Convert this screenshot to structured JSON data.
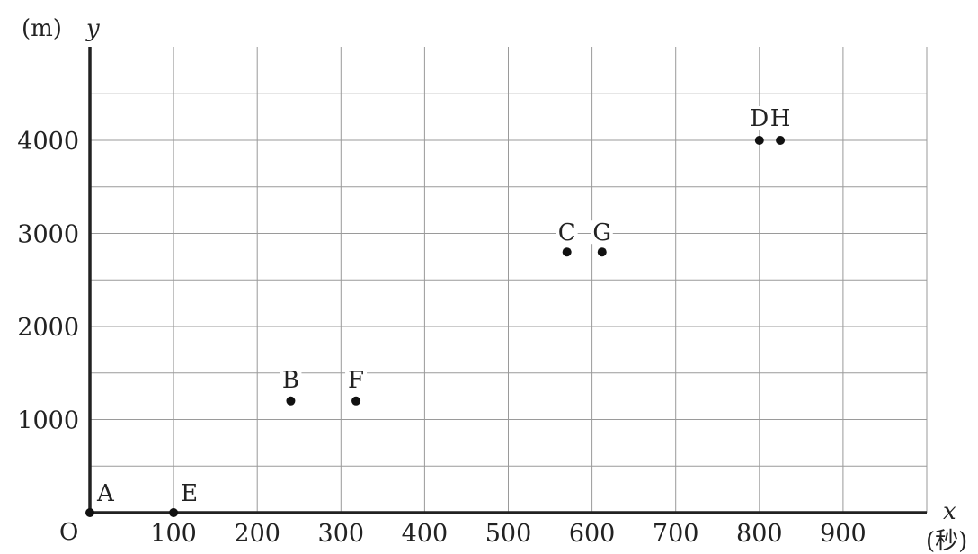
{
  "chart_data": {
    "type": "scatter",
    "xlabel": "x",
    "xunit": "(秒)",
    "ylabel": "y",
    "yunit": "(m)",
    "origin_label": "O",
    "xlim": [
      0,
      1000
    ],
    "ylim": [
      0,
      4000
    ],
    "x_ticks": [
      100,
      200,
      300,
      400,
      500,
      600,
      700,
      800,
      900
    ],
    "x_tick_labels": [
      "100",
      "200",
      "300",
      "400",
      "500",
      "600",
      "700",
      "800",
      "900"
    ],
    "y_ticks": [
      1000,
      2000,
      3000,
      4000
    ],
    "y_tick_labels": [
      "1000",
      "2000",
      "3000",
      "4000"
    ],
    "grid": true,
    "points": [
      {
        "label": "A",
        "x": 0,
        "y": 0
      },
      {
        "label": "E",
        "x": 100,
        "y": 0
      },
      {
        "label": "B",
        "x": 240,
        "y": 1200
      },
      {
        "label": "F",
        "x": 318,
        "y": 1200
      },
      {
        "label": "C",
        "x": 570,
        "y": 2800
      },
      {
        "label": "G",
        "x": 612,
        "y": 2800
      },
      {
        "label": "D",
        "x": 800,
        "y": 4000
      },
      {
        "label": "H",
        "x": 825,
        "y": 4000
      }
    ],
    "point_color": "#111111"
  }
}
